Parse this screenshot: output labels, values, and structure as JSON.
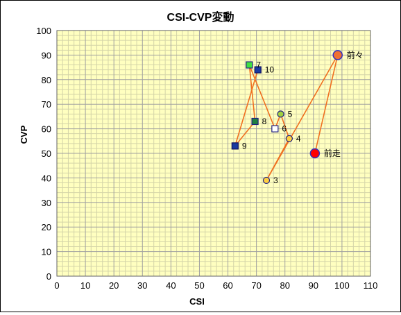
{
  "chart_data": {
    "type": "scatter",
    "title": "CSI-CVP変動",
    "xlabel": "CSI",
    "ylabel": "CVP",
    "xlim": [
      0,
      110
    ],
    "ylim": [
      0,
      100
    ],
    "xticks": [
      "0",
      "10",
      "20",
      "30",
      "40",
      "50",
      "60",
      "70",
      "80",
      "90",
      "100",
      "110"
    ],
    "yticks": [
      "0",
      "10",
      "20",
      "30",
      "40",
      "50",
      "60",
      "70",
      "80",
      "90",
      "100"
    ],
    "grid": true,
    "legend": "none",
    "colors": {
      "plot_bg": "#ffffc0",
      "grid_minor": "#d4d4a8",
      "grid_major": "#a0a0a0",
      "line": "#f07020"
    },
    "points": [
      {
        "label": "前走",
        "x": 90.5,
        "y": 50,
        "marker": "circle-large",
        "fill": "#ff0000",
        "stroke": "#3030c0"
      },
      {
        "label": "前々",
        "x": 98.5,
        "y": 90,
        "marker": "circle-large",
        "fill": "#f07030",
        "stroke": "#3030c0"
      },
      {
        "label": "3",
        "x": 73.5,
        "y": 39,
        "marker": "circle",
        "fill": "#ffd040",
        "stroke": "#202080"
      },
      {
        "label": "4",
        "x": 81.5,
        "y": 56,
        "marker": "circle",
        "fill": "#ffd040",
        "stroke": "#202080"
      },
      {
        "label": "5",
        "x": 78.5,
        "y": 66,
        "marker": "circle",
        "fill": "#a0d040",
        "stroke": "#202080"
      },
      {
        "label": "6",
        "x": 76.5,
        "y": 60,
        "marker": "square",
        "fill": "#ffffff",
        "stroke": "#202080"
      },
      {
        "label": "7",
        "x": 67.5,
        "y": 86,
        "marker": "square",
        "fill": "#40e040",
        "stroke": "#202080"
      },
      {
        "label": "8",
        "x": 69.5,
        "y": 63,
        "marker": "square",
        "fill": "#208040",
        "stroke": "#202080"
      },
      {
        "label": "9",
        "x": 62.5,
        "y": 53,
        "marker": "square",
        "fill": "#1a3aa0",
        "stroke": "#101060"
      },
      {
        "label": "10",
        "x": 70.5,
        "y": 84,
        "marker": "square",
        "fill": "#1a3aa0",
        "stroke": "#101060"
      }
    ]
  }
}
